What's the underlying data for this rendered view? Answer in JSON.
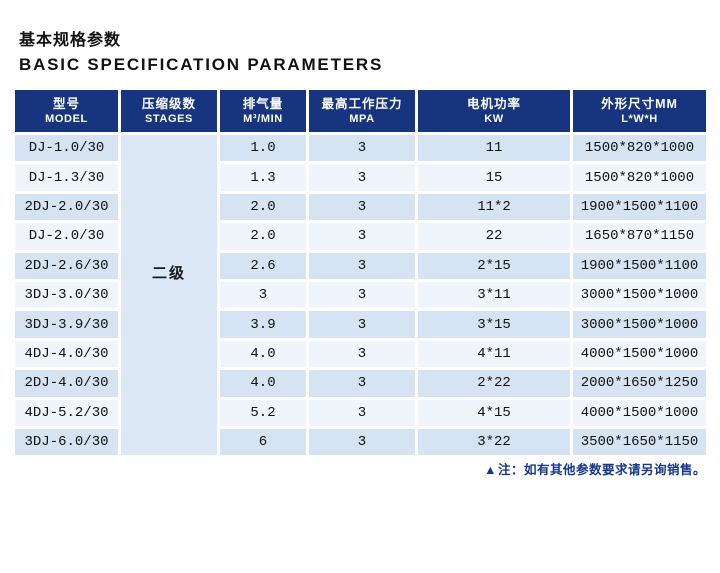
{
  "page": {
    "title_zh": "基本规格参数",
    "title_en": "BASIC SPECIFICATION PARAMETERS",
    "note_icon": "▲",
    "note_text": "注：如有其他参数要求请另询销售。"
  },
  "table": {
    "columns": [
      {
        "zh": "型号",
        "en": "MODEL"
      },
      {
        "zh": "压缩级数",
        "en": "STAGES"
      },
      {
        "zh": "排气量",
        "en": "M³/MIN"
      },
      {
        "zh": "最高工作压力",
        "en": "MPA"
      },
      {
        "zh": "电机功率",
        "en": "KW"
      },
      {
        "zh": "外形尺寸MM",
        "en": "L*W*H"
      }
    ],
    "stages_label": "二级",
    "rows": [
      {
        "model": "DJ-1.0/30",
        "displacement": "1.0",
        "pressure": "3",
        "power": "11",
        "dimensions": "1500*820*1000"
      },
      {
        "model": "DJ-1.3/30",
        "displacement": "1.3",
        "pressure": "3",
        "power": "15",
        "dimensions": "1500*820*1000"
      },
      {
        "model": "2DJ-2.0/30",
        "displacement": "2.0",
        "pressure": "3",
        "power": "11*2",
        "dimensions": "1900*1500*1100"
      },
      {
        "model": "DJ-2.0/30",
        "displacement": "2.0",
        "pressure": "3",
        "power": "22",
        "dimensions": "1650*870*1150"
      },
      {
        "model": "2DJ-2.6/30",
        "displacement": "2.6",
        "pressure": "3",
        "power": "2*15",
        "dimensions": "1900*1500*1100"
      },
      {
        "model": "3DJ-3.0/30",
        "displacement": "3",
        "pressure": "3",
        "power": "3*11",
        "dimensions": "3000*1500*1000"
      },
      {
        "model": "3DJ-3.9/30",
        "displacement": "3.9",
        "pressure": "3",
        "power": "3*15",
        "dimensions": "3000*1500*1000"
      },
      {
        "model": "4DJ-4.0/30",
        "displacement": "4.0",
        "pressure": "3",
        "power": "4*11",
        "dimensions": "4000*1500*1000"
      },
      {
        "model": "2DJ-4.0/30",
        "displacement": "4.0",
        "pressure": "3",
        "power": "2*22",
        "dimensions": "2000*1650*1250"
      },
      {
        "model": "4DJ-5.2/30",
        "displacement": "5.2",
        "pressure": "3",
        "power": "4*15",
        "dimensions": "4000*1500*1000"
      },
      {
        "model": "3DJ-6.0/30",
        "displacement": "6",
        "pressure": "3",
        "power": "3*22",
        "dimensions": "3500*1650*1150"
      }
    ],
    "colors": {
      "header_bg": "#16357e",
      "row_stripe_dark": "#d5e3f2",
      "row_stripe_light": "#eff5fb",
      "stages_merged_bg": "#dce8f5",
      "note_text": "#17378a",
      "title_text": "#121212"
    }
  }
}
